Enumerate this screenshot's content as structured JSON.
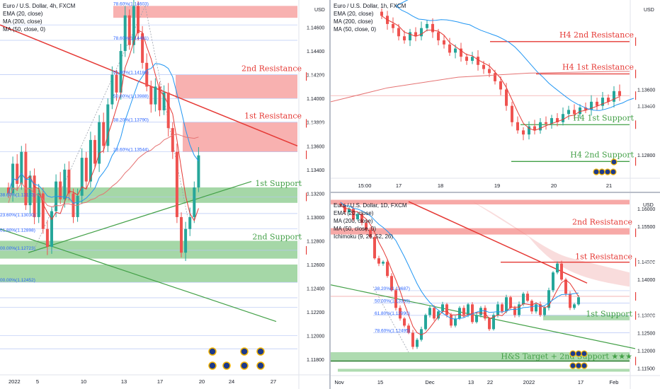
{
  "colors": {
    "resistance_zone": "#ef5350",
    "support_zone": "#4caf50",
    "ema": "#e53935",
    "ma200": "#e57373",
    "ma50": "#2196f3",
    "up_candle": "#26a69a",
    "down_candle": "#ef5350",
    "trend_red": "#e53935",
    "trend_green": "#43a047",
    "fib": "#2962ff",
    "price_tag": "#ef5350"
  },
  "panels": {
    "h4": {
      "header": [
        "Euro / U.S. Dollar, 4h, FXCM",
        "EMA (20, close)",
        "MA (200, close)",
        "MA (50, close, 0)"
      ],
      "currency": "USD",
      "y_ticks": [
        "1.14600",
        "1.14400",
        "1.14200",
        "1.14000",
        "1.13800",
        "1.13600",
        "1.13400",
        "1.13200",
        "1.13000",
        "1.12800",
        "1.12600",
        "1.12400",
        "1.12200",
        "1.12000",
        "1.11800"
      ],
      "x_ticks": [
        "2022",
        "5",
        "10",
        "13",
        "17",
        "20",
        "24",
        "27"
      ],
      "labels": {
        "res2": "2nd Resistance",
        "res1": "1st Resistance",
        "sup1": "1st Support",
        "sup2": "2nd Support"
      },
      "price_tags": {
        "res2": "1.14185",
        "res1": "1.13790",
        "last": "1.13525",
        "countdown": "02:44:51",
        "sup1": "1.13170",
        "sup2": "1.12720"
      },
      "fib_left": [
        {
          "text": "23.60%(1.13030)"
        },
        {
          "text": "38.60%(1.13173)"
        },
        {
          "text": "61.80%(1.12898)"
        },
        {
          "text": "00.00%(1.12723)"
        },
        {
          "text": "00.00%(1.12452)"
        }
      ],
      "fib_mid": [
        "78.60%(1.14603)",
        "78.60%(1.14481)",
        "61.80%(1.14186)",
        "50.00%(1.13988)",
        "38.20%(1.13790)",
        "23.60%(1.13544)"
      ]
    },
    "h1": {
      "header": [
        "Euro / U.S. Dollar, 1h, FXCM",
        "EMA (20, close)",
        "MA (200, close)",
        "MA (50, close, 0)"
      ],
      "currency": "USD",
      "x_ticks": [
        "15:00",
        "17",
        "18",
        "19",
        "20",
        "21"
      ],
      "labels": {
        "res2": "H4 2nd Resistance",
        "res1": "H4 1st Resistance",
        "sup1": "H4 1st Support",
        "sup2": "H4 2nd Support"
      },
      "price_tags": {
        "res2": "1.14185",
        "res1": "1.13790",
        "last": "1.13525",
        "countdown": "44:51",
        "sup1": "1.13170",
        "sup2": "1.12720"
      },
      "y_ticks": [
        "1.13600",
        "1.13400",
        "1.12800"
      ]
    },
    "d1": {
      "header": [
        "Euro / U.S. Dollar, 1D, FXCM",
        "EMA (20, close)",
        "MA (200, close)",
        "MA (50, close, 0)",
        "Ichimoku (9, 26, 52, 26)"
      ],
      "currency": "USD",
      "y_ticks": [
        "1.16000",
        "1.15500",
        "1.14500",
        "1.14000",
        "1.13000",
        "1.12500",
        "1.12000",
        "1.11500"
      ],
      "x_ticks": [
        "Nov",
        "15",
        "Dec",
        "13",
        "22",
        "2022",
        "17",
        "Feb"
      ],
      "labels": {
        "res2": "2nd Resistance",
        "res1": "1st Resistance",
        "sup1": "1st Support",
        "sup2": "H&S Target + 2nd Support ★★★"
      },
      "price_tags": {
        "res2": "1.15320",
        "res1": "1.14490",
        "last": "1.13525",
        "countdown": "18:44:51",
        "sup1": "1.12985",
        "sup2": "1.11700"
      },
      "fib": [
        "38.20%(1.13687)",
        "50.00%(1.13339)",
        "61.80%(1.12990)",
        "78.60%(1.12495)"
      ]
    }
  },
  "chart_data": [
    {
      "type": "candlestick",
      "title": "Euro / U.S. Dollar, 4h, FXCM",
      "symbol": "EURUSD",
      "timeframe": "4h",
      "x_ticks": [
        "2022",
        "5",
        "10",
        "13",
        "17",
        "20",
        "24",
        "27"
      ],
      "ylim": [
        1.117,
        1.148
      ],
      "levels": {
        "2nd Resistance": 1.14185,
        "1st Resistance": 1.1379,
        "1st Support": 1.1317,
        "2nd Support": 1.1272
      },
      "last_price": 1.13525,
      "fibonacci": [
        {
          "level": "78.60%",
          "price": 1.14603
        },
        {
          "level": "78.60%",
          "price": 1.14481
        },
        {
          "level": "61.80%",
          "price": 1.14186
        },
        {
          "level": "50.00%",
          "price": 1.13988
        },
        {
          "level": "38.20%",
          "price": 1.1379
        },
        {
          "level": "23.60%",
          "price": 1.13544
        }
      ],
      "indicators": [
        "EMA (20, close)",
        "MA (200, close)",
        "MA (50, close, 0)"
      ],
      "price_path": [
        1.132,
        1.1345,
        1.1328,
        1.1355,
        1.131,
        1.1335,
        1.13,
        1.132,
        1.129,
        1.1275,
        1.1305,
        1.133,
        1.1315,
        1.134,
        1.132,
        1.13,
        1.1318,
        1.135,
        1.133,
        1.1365,
        1.1345,
        1.138,
        1.136,
        1.1395,
        1.142,
        1.1405,
        1.144,
        1.147,
        1.1445,
        1.1478,
        1.1455,
        1.143,
        1.141,
        1.1395,
        1.141,
        1.139,
        1.1405,
        1.1375,
        1.1355,
        1.13,
        1.127,
        1.129,
        1.13,
        1.1325,
        1.1352
      ]
    },
    {
      "type": "candlestick",
      "title": "Euro / U.S. Dollar, 1h, FXCM",
      "symbol": "EURUSD",
      "timeframe": "1h",
      "x_ticks": [
        "15:00",
        "17",
        "18",
        "19",
        "20",
        "21"
      ],
      "ylim": [
        1.1255,
        1.1465
      ],
      "levels": {
        "H4 2nd Resistance": 1.14185,
        "H4 1st Resistance": 1.1379,
        "H4 1st Support": 1.1317,
        "H4 2nd Support": 1.1272
      },
      "last_price": 1.13525,
      "price_path": [
        1.145,
        1.144,
        1.1435,
        1.1425,
        1.142,
        1.143,
        1.1425,
        1.1435,
        1.144,
        1.143,
        1.142,
        1.1415,
        1.1405,
        1.141,
        1.14,
        1.1395,
        1.14,
        1.139,
        1.1385,
        1.138,
        1.137,
        1.136,
        1.134,
        1.132,
        1.131,
        1.1305,
        1.1315,
        1.131,
        1.132,
        1.1318,
        1.1325,
        1.132,
        1.133,
        1.1335,
        1.133,
        1.1338,
        1.1335,
        1.1345,
        1.134,
        1.135,
        1.1345,
        1.1358,
        1.1352
      ]
    },
    {
      "type": "candlestick",
      "title": "Euro / U.S. Dollar, 1D, FXCM",
      "symbol": "EURUSD",
      "timeframe": "1D",
      "x_ticks": [
        "Nov",
        "15",
        "Dec",
        "13",
        "22",
        "2022",
        "17",
        "Feb"
      ],
      "ylim": [
        1.1135,
        1.164
      ],
      "levels": {
        "2nd Resistance": 1.1532,
        "1st Resistance": 1.1449,
        "1st Support": 1.12985,
        "H&S Target + 2nd Support ★★★": 1.117
      },
      "last_price": 1.13525,
      "fibonacci": [
        {
          "level": "38.20%",
          "price": 1.13687
        },
        {
          "level": "50.00%",
          "price": 1.13339
        },
        {
          "level": "61.80%",
          "price": 1.1299
        },
        {
          "level": "78.60%",
          "price": 1.12495
        }
      ],
      "indicators": [
        "EMA (20, close)",
        "MA (200, close)",
        "MA (50, close, 0)",
        "Ichimoku (9, 26, 52, 26)"
      ],
      "price_path": [
        1.161,
        1.159,
        1.16,
        1.157,
        1.1585,
        1.156,
        1.154,
        1.152,
        1.146,
        1.1445,
        1.145,
        1.141,
        1.137,
        1.132,
        1.129,
        1.127,
        1.125,
        1.121,
        1.123,
        1.126,
        1.13,
        1.132,
        1.129,
        1.131,
        1.133,
        1.13,
        1.127,
        1.129,
        1.132,
        1.13,
        1.133,
        1.128,
        1.13,
        1.132,
        1.129,
        1.126,
        1.13,
        1.133,
        1.131,
        1.135,
        1.132,
        1.13,
        1.133,
        1.136,
        1.134,
        1.131,
        1.133,
        1.13,
        1.132,
        1.137,
        1.142,
        1.1445,
        1.14,
        1.136,
        1.132,
        1.133,
        1.135
      ]
    }
  ]
}
